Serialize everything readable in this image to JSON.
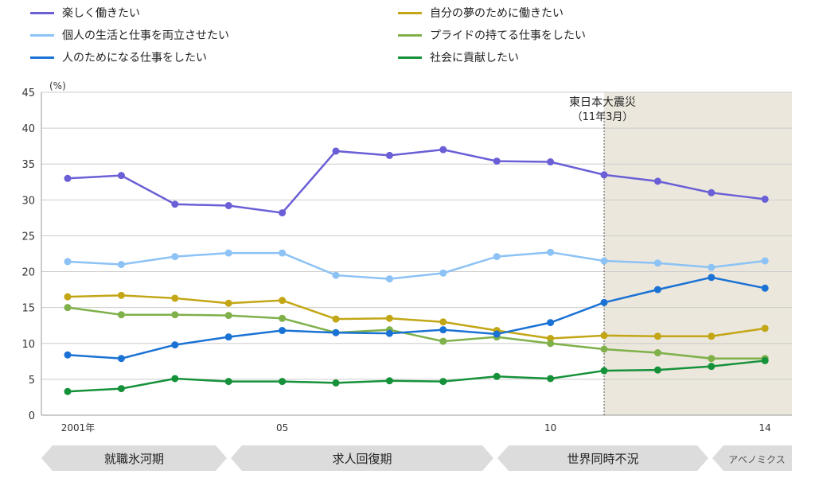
{
  "chart_data": {
    "type": "line",
    "ylabel": "(%)",
    "ylim": [
      0,
      45
    ],
    "yticks": [
      0,
      5,
      10,
      15,
      20,
      25,
      30,
      35,
      40,
      45
    ],
    "x": [
      2001,
      2002,
      2003,
      2004,
      2005,
      2006,
      2007,
      2008,
      2009,
      2010,
      2011,
      2012,
      2013,
      2014
    ],
    "xtick_labels": [
      {
        "x": 2001,
        "label": "2001年"
      },
      {
        "x": 2005,
        "label": "05"
      },
      {
        "x": 2010,
        "label": "10"
      },
      {
        "x": 2014,
        "label": "14"
      }
    ],
    "grid": true,
    "legend_position": "top",
    "series": [
      {
        "name": "楽しく働きたい",
        "color": "#6a5fd6",
        "values": [
          33.0,
          33.4,
          29.4,
          29.2,
          28.2,
          36.8,
          36.2,
          37.0,
          35.4,
          35.3,
          33.5,
          32.6,
          31.0,
          30.1
        ]
      },
      {
        "name": "自分の夢のために働きたい",
        "color": "#c3a615",
        "values": [
          16.5,
          16.7,
          16.3,
          15.6,
          16.0,
          13.4,
          13.5,
          13.0,
          11.8,
          10.7,
          11.1,
          11.0,
          11.0,
          12.1
        ]
      },
      {
        "name": "個人の生活と仕事を両立させたい",
        "color": "#8cc2f5",
        "values": [
          21.4,
          21.0,
          22.1,
          22.6,
          22.6,
          19.5,
          19.0,
          19.8,
          22.1,
          22.7,
          21.5,
          21.2,
          20.6,
          21.5
        ]
      },
      {
        "name": "プライドの持てる仕事をしたい",
        "color": "#7fb04a",
        "values": [
          15.0,
          14.0,
          14.0,
          13.9,
          13.5,
          11.5,
          11.9,
          10.3,
          10.9,
          10.0,
          9.2,
          8.7,
          7.9,
          7.9
        ]
      },
      {
        "name": "人のためになる仕事をしたい",
        "color": "#1a72d4",
        "values": [
          8.4,
          7.9,
          9.8,
          10.9,
          11.8,
          11.5,
          11.4,
          11.9,
          11.3,
          12.9,
          15.7,
          17.5,
          19.2,
          17.7
        ]
      },
      {
        "name": "社会に貢献したい",
        "color": "#15913a",
        "values": [
          3.3,
          3.7,
          5.1,
          4.7,
          4.7,
          4.5,
          4.8,
          4.7,
          5.4,
          5.1,
          6.2,
          6.3,
          6.8,
          7.6
        ]
      }
    ],
    "annotations": [
      {
        "x": 2011,
        "label": "東日本大震災",
        "sublabel": "（11年3月）"
      }
    ],
    "shaded_from": 2011,
    "shade_color": "#ebe7dc",
    "periods": [
      "就職氷河期",
      "求人回復期",
      "世界同時不況",
      "アベノミクス"
    ]
  }
}
